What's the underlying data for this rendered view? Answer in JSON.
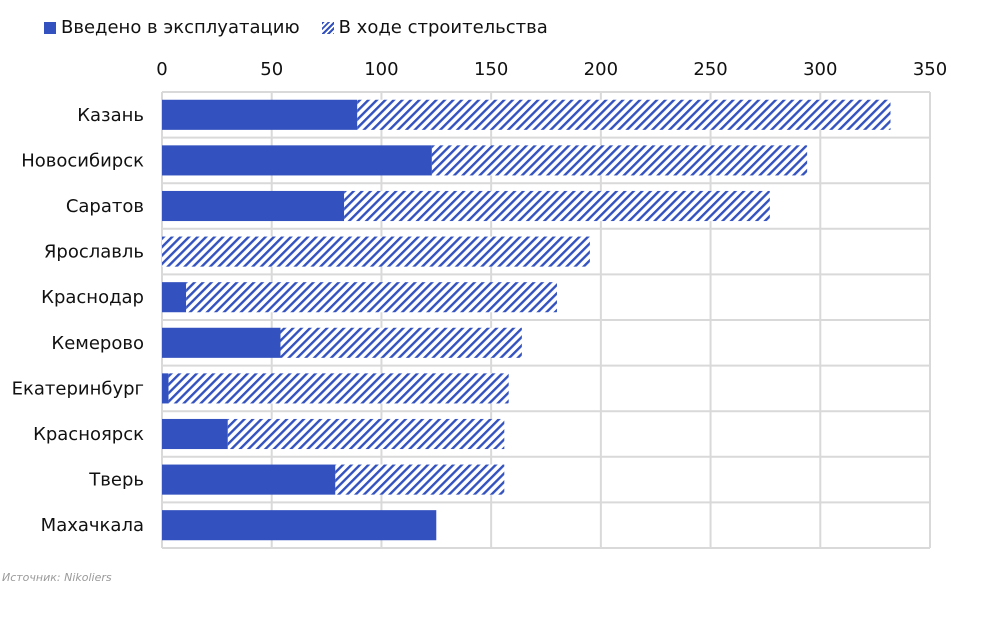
{
  "chart_data": {
    "type": "bar",
    "orientation": "horizontal",
    "stacked": true,
    "categories": [
      "Казань",
      "Новосибирск",
      "Саратов",
      "Ярославль",
      "Краснодар",
      "Кемерово",
      "Екатеринбург",
      "Красноярск",
      "Тверь",
      "Махачкала"
    ],
    "series": [
      {
        "name": "Введено в эксплуатацию",
        "color": "#3352bf",
        "pattern": "solid",
        "values": [
          89,
          123,
          83,
          0,
          11,
          54,
          3,
          30,
          79,
          125
        ]
      },
      {
        "name": "В ходе строительства",
        "color": "#3352bf",
        "pattern": "hatched",
        "values": [
          243,
          171,
          194,
          195,
          169,
          110,
          155,
          126,
          77,
          0
        ]
      }
    ],
    "xlim": [
      0,
      350
    ],
    "xticks": [
      "0",
      "50",
      "100",
      "150",
      "200",
      "250",
      "300",
      "350"
    ],
    "grid": true,
    "legend_position": "top-left"
  },
  "source": "Источник: Nikoliers"
}
